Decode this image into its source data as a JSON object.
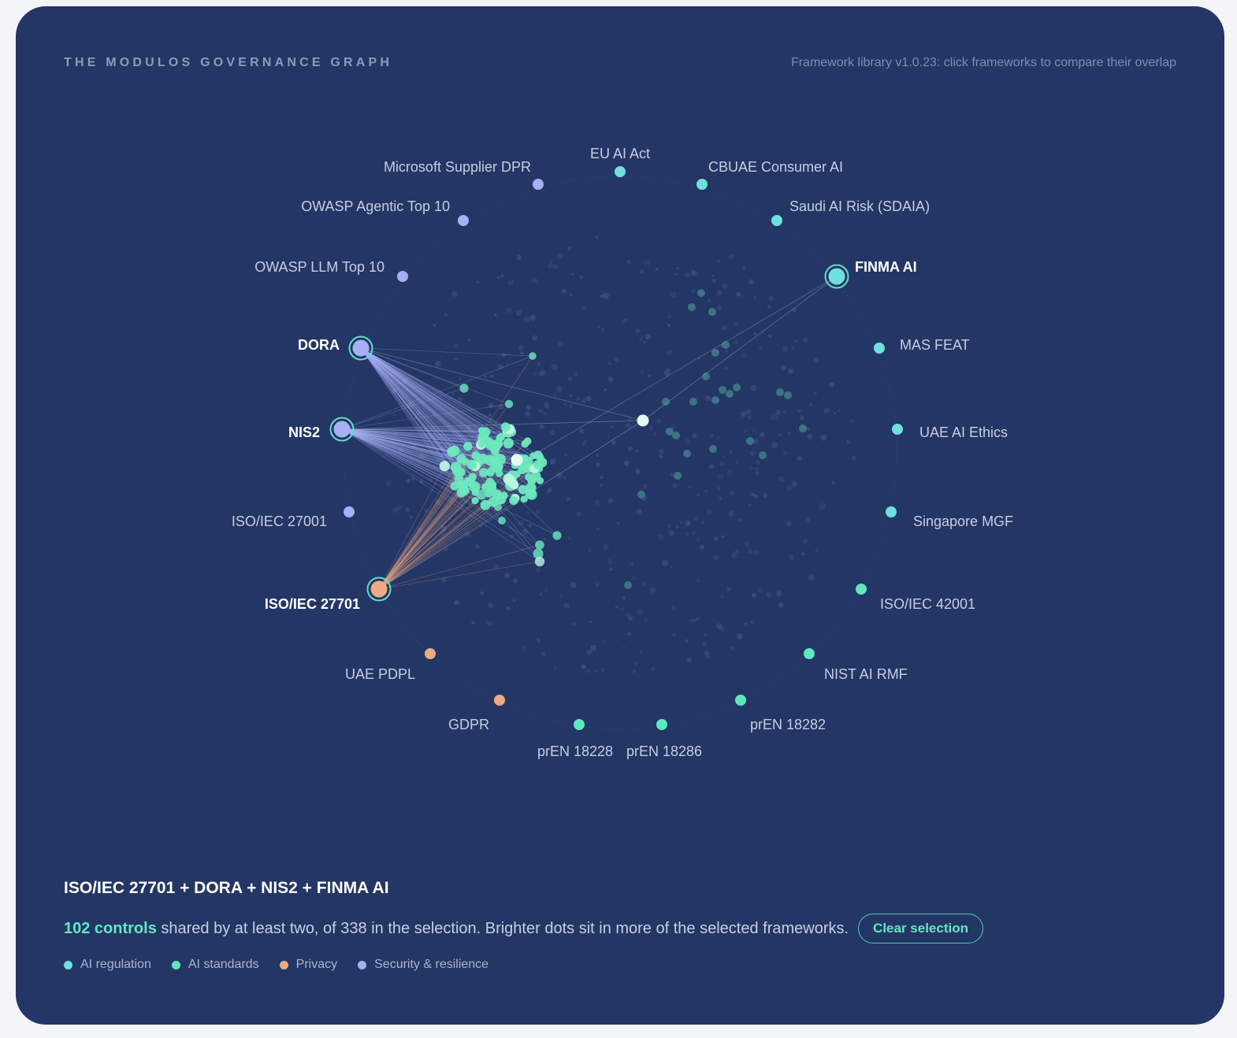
{
  "header": {
    "eyebrow": "THE MODULOS GOVERNANCE GRAPH",
    "subtitle": "Framework library v1.0.23: click frameworks to compare their overlap"
  },
  "colors": {
    "background": "#243665",
    "ai_regulation": "#6fe0e0",
    "ai_standards": "#5ee8bf",
    "privacy": "#eeaa84",
    "security": "#a7b0f4",
    "accent": "#62e8c3"
  },
  "frameworks": [
    {
      "id": "eu-ai-act",
      "label": "EU AI Act",
      "category": "ai_regulation",
      "selected": false
    },
    {
      "id": "cbuae-consumer-ai",
      "label": "CBUAE Consumer AI",
      "category": "ai_regulation",
      "selected": false
    },
    {
      "id": "saudi-ai-risk",
      "label": "Saudi AI Risk (SDAIA)",
      "category": "ai_regulation",
      "selected": false
    },
    {
      "id": "finma-ai",
      "label": "FINMA AI",
      "category": "ai_regulation",
      "selected": true
    },
    {
      "id": "mas-feat",
      "label": "MAS FEAT",
      "category": "ai_regulation",
      "selected": false
    },
    {
      "id": "uae-ai-ethics",
      "label": "UAE AI Ethics",
      "category": "ai_regulation",
      "selected": false
    },
    {
      "id": "singapore-mgf",
      "label": "Singapore MGF",
      "category": "ai_regulation",
      "selected": false
    },
    {
      "id": "iso-42001",
      "label": "ISO/IEC 42001",
      "category": "ai_standards",
      "selected": false
    },
    {
      "id": "nist-ai-rmf",
      "label": "NIST AI RMF",
      "category": "ai_standards",
      "selected": false
    },
    {
      "id": "pren-18282",
      "label": "prEN 18282",
      "category": "ai_standards",
      "selected": false
    },
    {
      "id": "pren-18286",
      "label": "prEN 18286",
      "category": "ai_standards",
      "selected": false
    },
    {
      "id": "pren-18228",
      "label": "prEN 18228",
      "category": "ai_standards",
      "selected": false
    },
    {
      "id": "gdpr",
      "label": "GDPR",
      "category": "privacy",
      "selected": false
    },
    {
      "id": "uae-pdpl",
      "label": "UAE PDPL",
      "category": "privacy",
      "selected": false
    },
    {
      "id": "iso-27701",
      "label": "ISO/IEC 27701",
      "category": "privacy",
      "selected": true
    },
    {
      "id": "iso-27001",
      "label": "ISO/IEC 27001",
      "category": "security",
      "selected": false
    },
    {
      "id": "nis2",
      "label": "NIS2",
      "category": "security",
      "selected": true
    },
    {
      "id": "dora",
      "label": "DORA",
      "category": "security",
      "selected": true
    },
    {
      "id": "owasp-llm",
      "label": "OWASP LLM Top 10",
      "category": "security",
      "selected": false
    },
    {
      "id": "owasp-agentic",
      "label": "OWASP Agentic Top 10",
      "category": "security",
      "selected": false
    },
    {
      "id": "microsoft-dpr",
      "label": "Microsoft Supplier DPR",
      "category": "security",
      "selected": false
    }
  ],
  "selection": {
    "title": "ISO/IEC 27701 + DORA + NIS2 + FINMA AI",
    "shared_count_label": "102 controls",
    "summary_text": " shared by at least two, of 338 in the selection. Brighter dots sit in more of the selected frameworks.",
    "shared_controls": 102,
    "total_controls": 338,
    "clear_label": "Clear selection"
  },
  "legend": [
    {
      "label": "AI regulation",
      "color": "#6fe0e0"
    },
    {
      "label": "AI standards",
      "color": "#5ee8bf"
    },
    {
      "label": "Privacy",
      "color": "#eeaa84"
    },
    {
      "label": "Security & resilience",
      "color": "#a7b0f4"
    }
  ]
}
